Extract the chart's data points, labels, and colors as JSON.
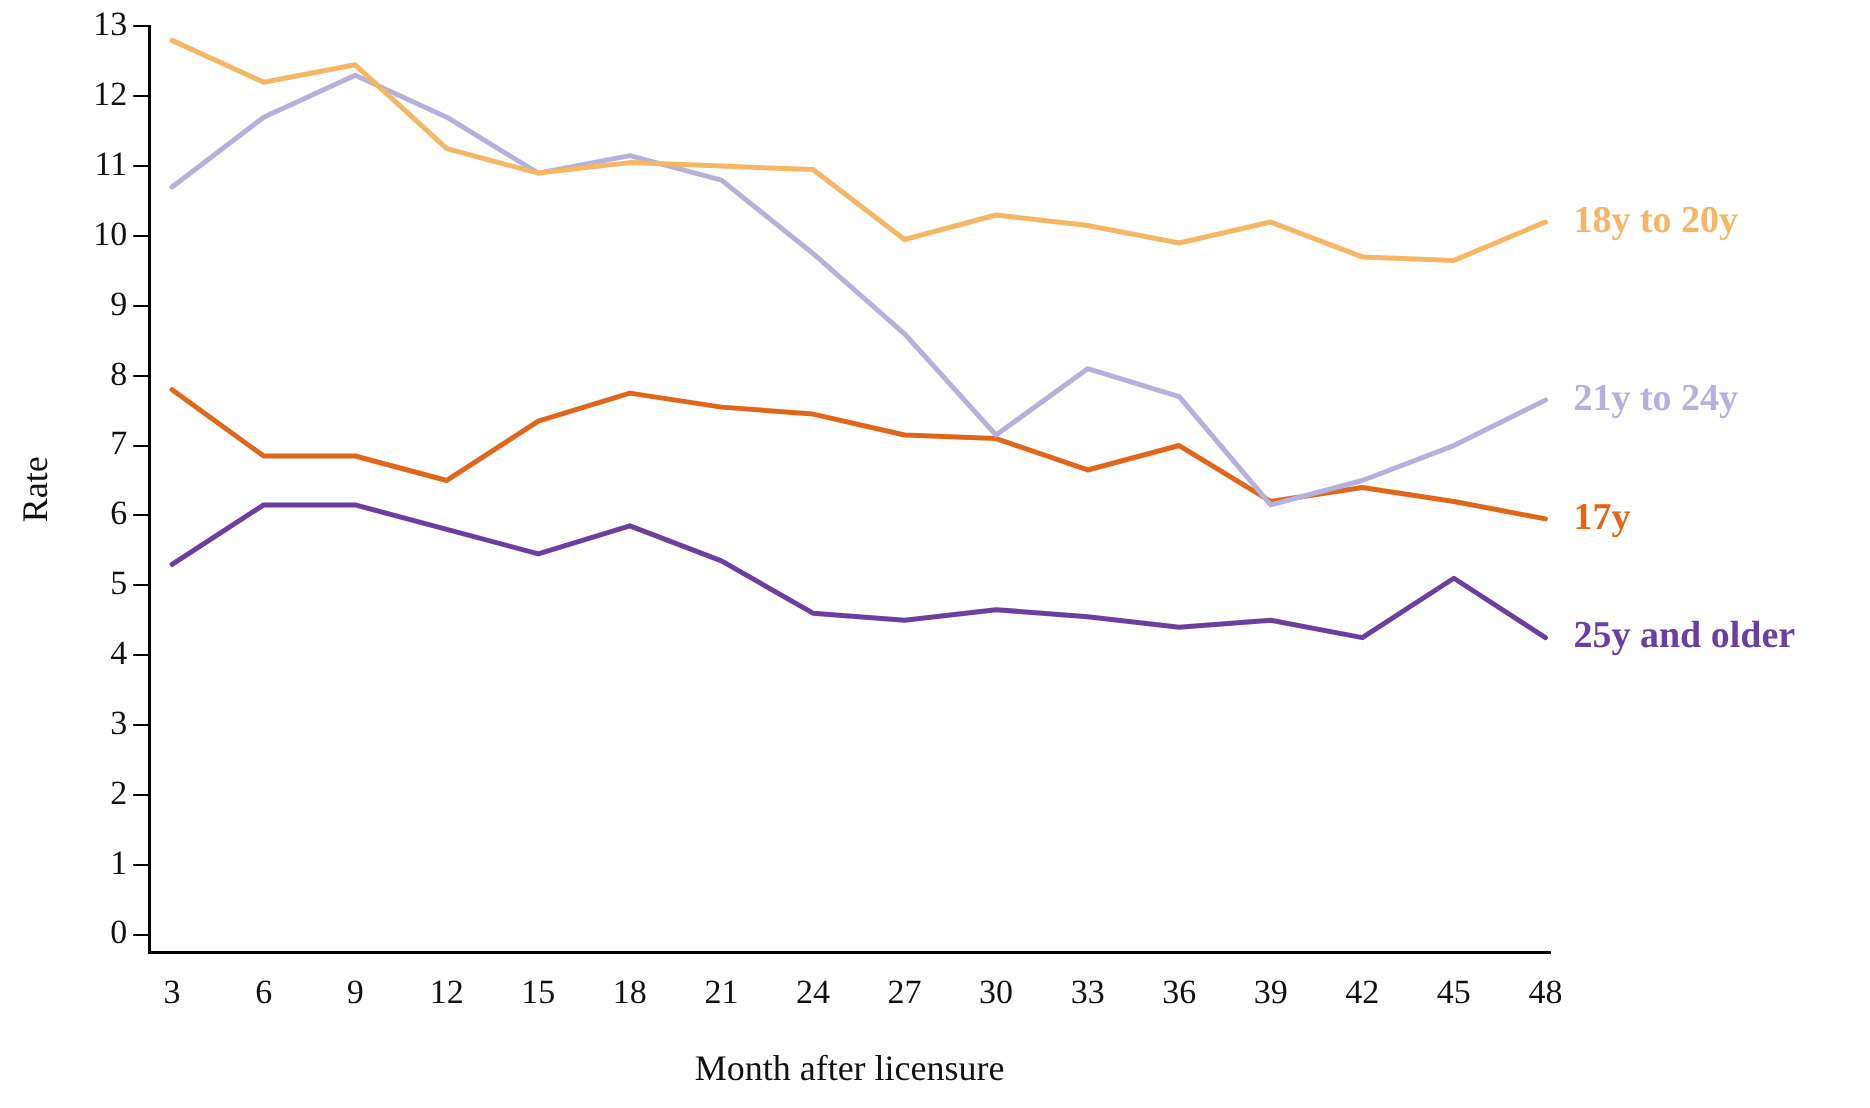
{
  "chart_data": {
    "type": "line",
    "xlabel": "Month after licensure",
    "ylabel": "Rate",
    "x": [
      3,
      6,
      9,
      12,
      15,
      18,
      21,
      24,
      27,
      30,
      33,
      36,
      39,
      42,
      45,
      48
    ],
    "xlim": [
      2.25,
      48.15
    ],
    "xticks": [
      3,
      6,
      9,
      12,
      15,
      18,
      21,
      24,
      27,
      30,
      33,
      36,
      39,
      42,
      45,
      48
    ],
    "ylim": [
      -0.25,
      13
    ],
    "yticks": [
      0,
      1,
      2,
      3,
      4,
      5,
      6,
      7,
      8,
      9,
      10,
      11,
      12,
      13
    ],
    "grid": false,
    "legend": false,
    "marker": "none",
    "line_style": "solid",
    "series": [
      {
        "name": "18y to 20y",
        "color": "#f6b765",
        "values": [
          12.8,
          12.2,
          12.45,
          11.25,
          10.9,
          11.05,
          11.0,
          10.95,
          9.95,
          10.3,
          10.15,
          9.9,
          10.2,
          9.7,
          9.65,
          10.2
        ]
      },
      {
        "name": "21y to 24y",
        "color": "#b5b0dc",
        "values": [
          10.7,
          11.7,
          12.3,
          11.7,
          10.9,
          11.15,
          10.8,
          9.75,
          8.6,
          7.15,
          8.1,
          7.7,
          6.15,
          6.5,
          7.0,
          7.65
        ]
      },
      {
        "name": "17y",
        "color": "#e1661a",
        "values": [
          7.8,
          6.85,
          6.85,
          6.5,
          7.35,
          7.75,
          7.55,
          7.45,
          7.15,
          7.1,
          6.65,
          7.0,
          6.2,
          6.4,
          6.2,
          5.95
        ]
      },
      {
        "name": "25y and older",
        "color": "#6b3fa0",
        "values": [
          5.3,
          6.15,
          6.15,
          5.8,
          5.45,
          5.85,
          5.35,
          4.6,
          4.5,
          4.65,
          4.55,
          4.4,
          4.5,
          4.25,
          5.1,
          4.25
        ]
      }
    ]
  }
}
